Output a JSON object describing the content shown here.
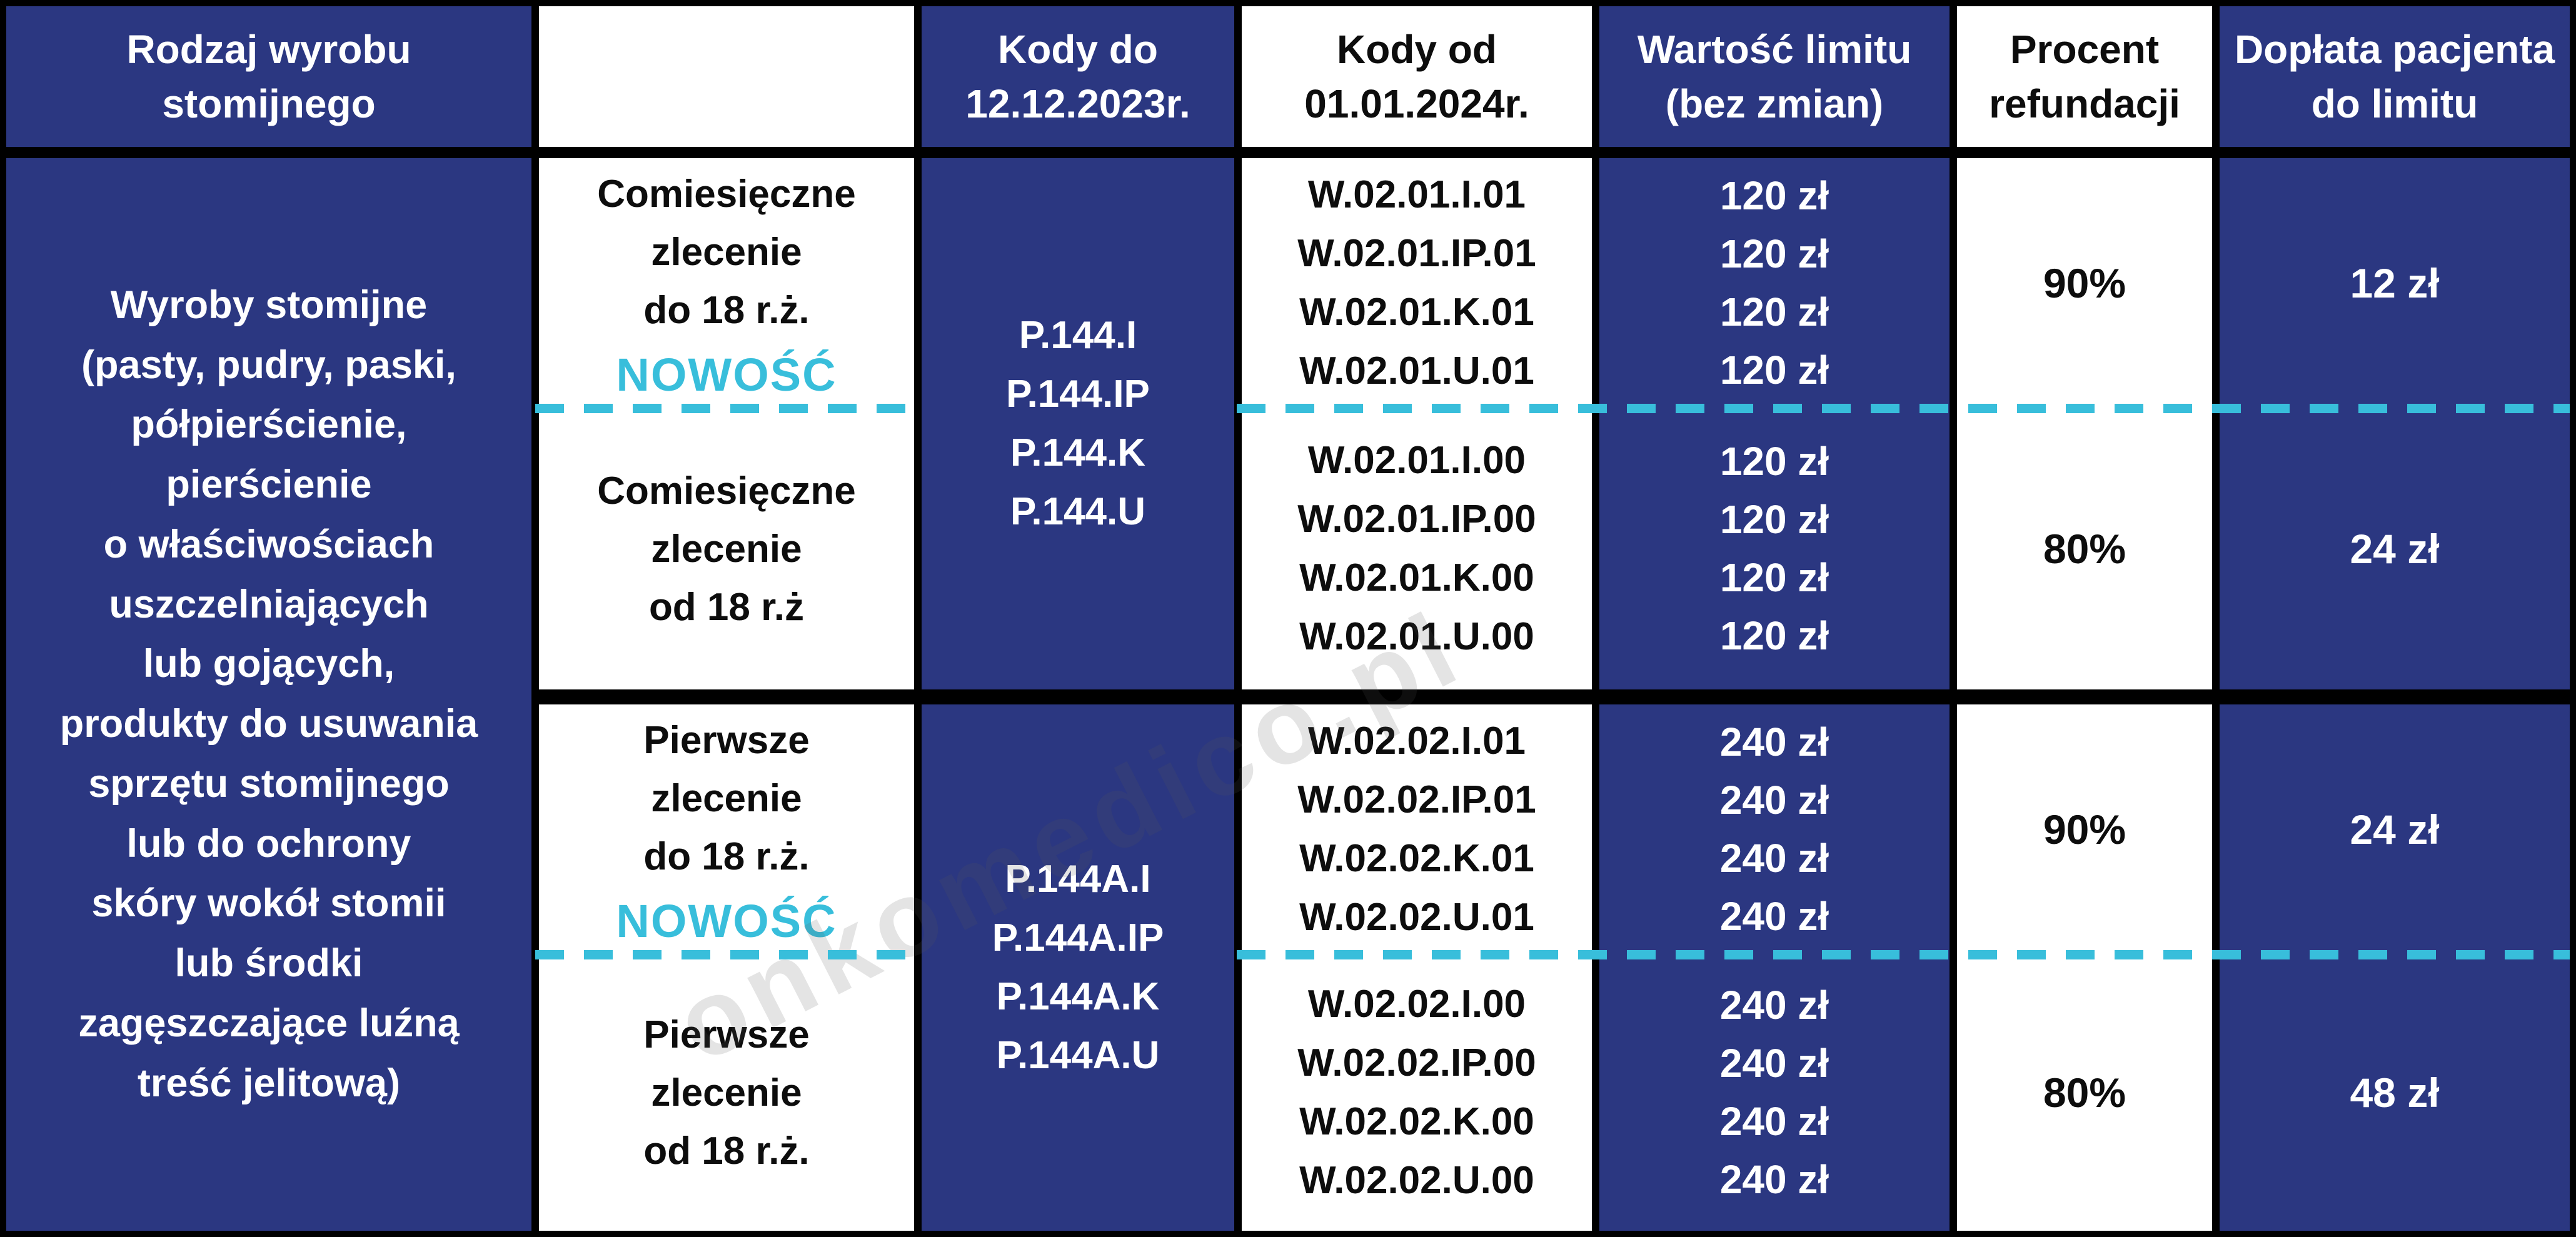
{
  "colors": {
    "navy": "#2b3781",
    "cyan_accent": "#38bedb",
    "grid_black": "#000000",
    "white": "#ffffff"
  },
  "watermark": "onkomedico.pl",
  "header": {
    "product_type": "Rodzaj wyrobu\nstomijnego",
    "order_type": "",
    "codes_until": "Kody do\n12.12.2023r.",
    "codes_from": "Kody od\n01.01.2024r.",
    "limit_value": "Wartość limitu\n(bez zmian)",
    "refund_percent": "Procent\nrefundacji",
    "patient_copay": "Dopłata pacjenta\ndo limitu"
  },
  "product": {
    "description": "Wyroby stomijne\n(pasty, pudry, paski,\npółpierścienie,\npierścienie\no właściwościach\nuszczelniających\nlub gojących,\nprodukty do usuwania\nsprzętu stomijnego\nlub do ochrony\nskóry wokół stomii\nlub środki\nzagęszczające luźną\ntreść jelitową)"
  },
  "groups": [
    {
      "codes_old": [
        "P.144.I",
        "P.144.IP",
        "P.144.K",
        "P.144.U"
      ],
      "rows": [
        {
          "order_type": "Comiesięczne\nzlecenie\ndo 18 r.ż.",
          "badge": "NOWOŚĆ",
          "codes_new": [
            "W.02.01.I.01",
            "W.02.01.IP.01",
            "W.02.01.K.01",
            "W.02.01.U.01"
          ],
          "limits": [
            "120 zł",
            "120 zł",
            "120 zł",
            "120 zł"
          ],
          "refund": "90%",
          "copay": "12 zł"
        },
        {
          "order_type": "Comiesięczne\nzlecenie\nod 18 r.ż",
          "badge": "",
          "codes_new": [
            "W.02.01.I.00",
            "W.02.01.IP.00",
            "W.02.01.K.00",
            "W.02.01.U.00"
          ],
          "limits": [
            "120 zł",
            "120 zł",
            "120 zł",
            "120 zł"
          ],
          "refund": "80%",
          "copay": "24 zł"
        }
      ]
    },
    {
      "codes_old": [
        "P.144A.I",
        "P.144A.IP",
        "P.144A.K",
        "P.144A.U"
      ],
      "rows": [
        {
          "order_type": "Pierwsze\nzlecenie\ndo 18 r.ż.",
          "badge": "NOWOŚĆ",
          "codes_new": [
            "W.02.02.I.01",
            "W.02.02.IP.01",
            "W.02.02.K.01",
            "W.02.02.U.01"
          ],
          "limits": [
            "240 zł",
            "240 zł",
            "240 zł",
            "240 zł"
          ],
          "refund": "90%",
          "copay": "24 zł"
        },
        {
          "order_type": "Pierwsze\nzlecenie\nod 18 r.ż.",
          "badge": "",
          "codes_new": [
            "W.02.02.I.00",
            "W.02.02.IP.00",
            "W.02.02.K.00",
            "W.02.02.U.00"
          ],
          "limits": [
            "240 zł",
            "240 zł",
            "240 zł",
            "240 zł"
          ],
          "refund": "80%",
          "copay": "48 zł"
        }
      ]
    }
  ]
}
